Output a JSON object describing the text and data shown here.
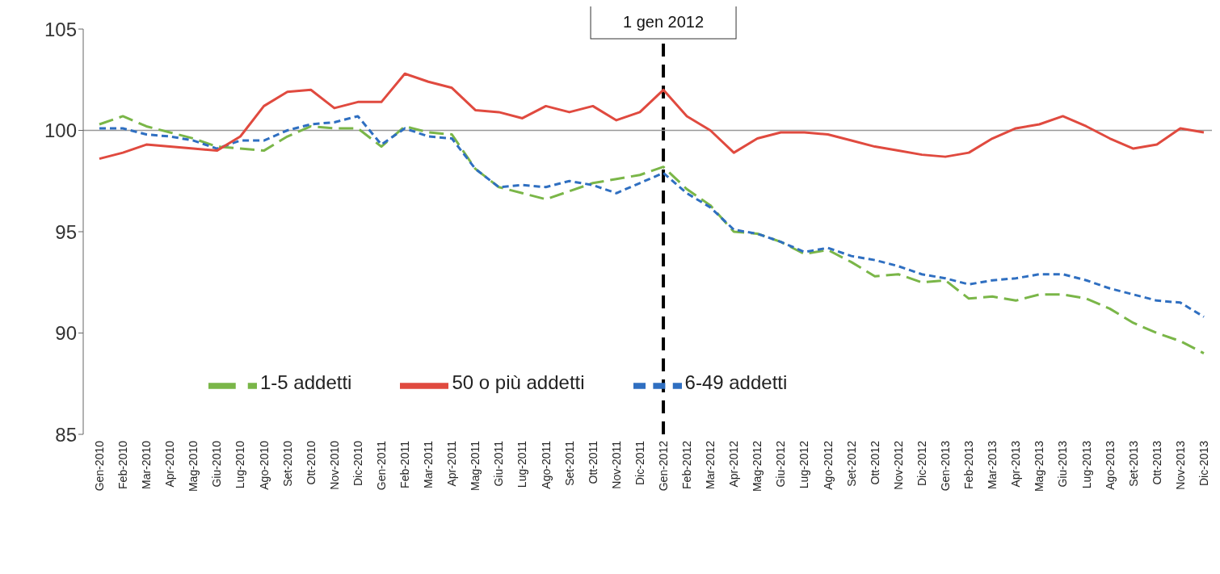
{
  "chart_data": {
    "type": "line",
    "categories": [
      "Gen-2010",
      "Feb-2010",
      "Mar-2010",
      "Apr-2010",
      "Mag-2010",
      "Giu-2010",
      "Lug-2010",
      "Ago-2010",
      "Set-2010",
      "Ott-2010",
      "Nov-2010",
      "Dic-2010",
      "Gen-2011",
      "Feb-2011",
      "Mar-2011",
      "Apr-2011",
      "Mag-2011",
      "Giu-2011",
      "Lug-2011",
      "Ago-2011",
      "Set-2011",
      "Ott-2011",
      "Nov-2011",
      "Dic-2011",
      "Gen-2012",
      "Feb-2012",
      "Mar-2012",
      "Apr-2012",
      "Mag-2012",
      "Giu-2012",
      "Lug-2012",
      "Ago-2012",
      "Set-2012",
      "Ott-2012",
      "Nov-2012",
      "Dic-2012",
      "Gen-2013",
      "Feb-2013",
      "Mar-2013",
      "Apr-2013",
      "Mag-2013",
      "Giu-2013",
      "Lug-2013",
      "Ago-2013",
      "Set-2013",
      "Ott-2013",
      "Nov-2013",
      "Dic-2013"
    ],
    "series": [
      {
        "name": "1-5 addetti",
        "color": "#7ab648",
        "line_style": "dashed",
        "values": [
          100.3,
          100.7,
          100.2,
          99.9,
          99.6,
          99.2,
          99.1,
          99.0,
          99.7,
          100.2,
          100.1,
          100.1,
          99.2,
          100.2,
          99.9,
          99.8,
          98.1,
          97.2,
          96.9,
          96.6,
          97.0,
          97.4,
          97.6,
          97.8,
          98.2,
          97.1,
          96.3,
          95.0,
          94.9,
          94.5,
          93.9,
          94.1,
          93.5,
          92.8,
          92.9,
          92.5,
          92.6,
          91.7,
          91.8,
          91.6,
          91.9,
          91.9,
          91.7,
          91.2,
          90.5,
          90.0,
          89.6,
          89.0
        ]
      },
      {
        "name": "6-49 addetti",
        "color": "#2f6fc1",
        "line_style": "dotted",
        "values": [
          100.1,
          100.1,
          99.8,
          99.7,
          99.5,
          99.1,
          99.5,
          99.5,
          100.0,
          100.3,
          100.4,
          100.7,
          99.3,
          100.1,
          99.7,
          99.6,
          98.1,
          97.2,
          97.3,
          97.2,
          97.5,
          97.3,
          96.9,
          97.4,
          97.9,
          96.9,
          96.2,
          95.1,
          94.9,
          94.5,
          94.0,
          94.2,
          93.8,
          93.6,
          93.3,
          92.9,
          92.7,
          92.4,
          92.6,
          92.7,
          92.9,
          92.9,
          92.6,
          92.2,
          91.9,
          91.6,
          91.5,
          90.8
        ]
      },
      {
        "name": "50 o più addetti",
        "color": "#e04a3f",
        "line_style": "solid",
        "values": [
          98.6,
          98.9,
          99.3,
          99.2,
          99.1,
          99.0,
          99.7,
          101.2,
          101.9,
          102.0,
          101.1,
          101.4,
          101.4,
          102.8,
          102.4,
          102.1,
          101.0,
          100.9,
          100.6,
          101.2,
          100.9,
          101.2,
          100.5,
          100.9,
          102.0,
          100.7,
          100.0,
          98.9,
          99.6,
          99.9,
          99.9,
          99.8,
          99.5,
          99.2,
          99.0,
          98.8,
          98.7,
          98.9,
          99.6,
          100.1,
          100.3,
          100.7,
          100.2,
          99.6,
          99.1,
          99.3,
          100.1,
          99.9
        ]
      }
    ],
    "ylim": [
      85,
      105
    ],
    "yticks": [
      85,
      90,
      95,
      100,
      105
    ],
    "ref_lines": [
      {
        "axis": "x",
        "value": "Gen-2012",
        "label": "1 gen 2012",
        "color": "#000000",
        "line_style": "dashed"
      },
      {
        "axis": "y",
        "value": 100,
        "color": "#999999",
        "line_style": "solid"
      }
    ],
    "grid": false,
    "legend": "bottom",
    "marker": "none"
  }
}
